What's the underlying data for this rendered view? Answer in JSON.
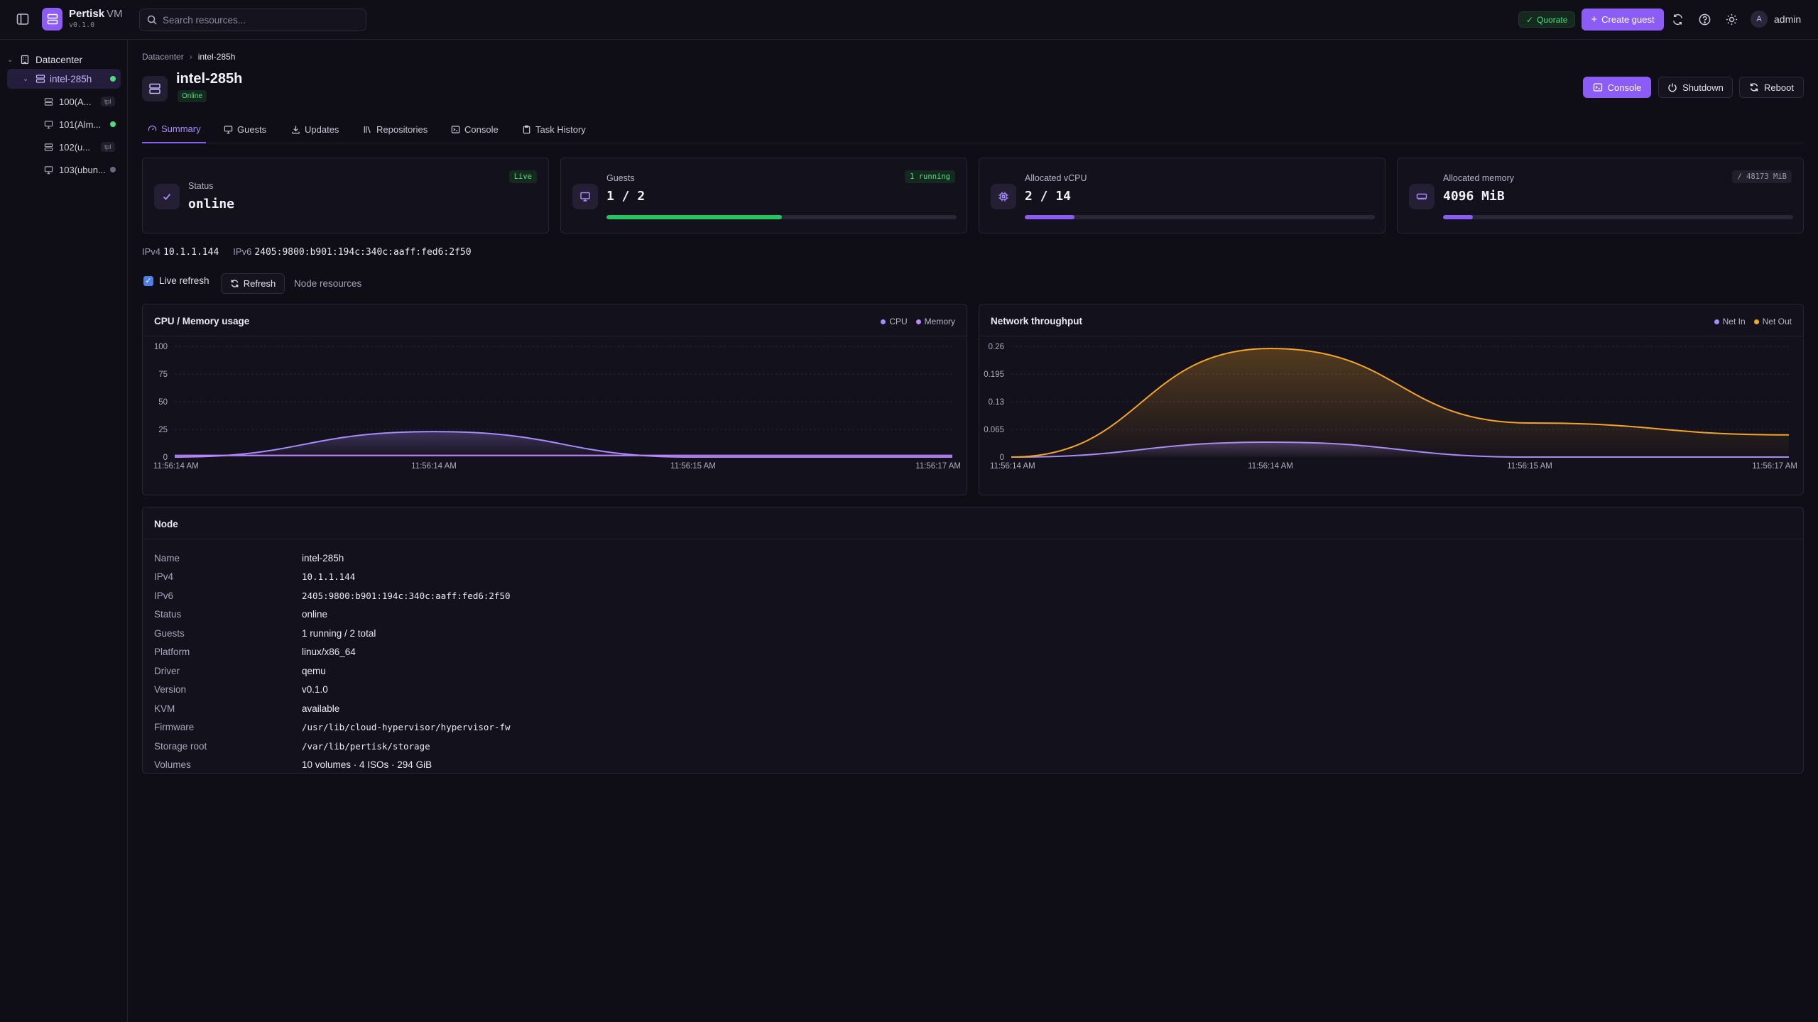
{
  "app": {
    "name": "Pertisk",
    "suffix": "VM",
    "version": "v0.1.0"
  },
  "search": {
    "placeholder": "Search resources..."
  },
  "topbar": {
    "quorate": "Quorate",
    "create_guest": "Create guest",
    "user": "admin",
    "avatar_initial": "A"
  },
  "sidebar": {
    "datacenter": "Datacenter",
    "node": "intel-285h",
    "guests": [
      {
        "label": "100(A...",
        "tag": "tpl",
        "kind": "template"
      },
      {
        "label": "101(Alm...",
        "status": "running",
        "kind": "vm"
      },
      {
        "label": "102(u...",
        "tag": "tpl",
        "kind": "template"
      },
      {
        "label": "103(ubun...",
        "status": "stopped",
        "kind": "vm"
      }
    ]
  },
  "breadcrumb": [
    "Datacenter",
    "intel-285h"
  ],
  "header": {
    "title": "intel-285h",
    "status": "Online",
    "console": "Console",
    "shutdown": "Shutdown",
    "reboot": "Reboot"
  },
  "tabs": [
    "Summary",
    "Guests",
    "Updates",
    "Repositories",
    "Console",
    "Task History"
  ],
  "stats": {
    "status": {
      "label": "Status",
      "value": "online",
      "chip": "Live"
    },
    "guests": {
      "label": "Guests",
      "value": "1 / 2",
      "chip": "1 running",
      "progress": 0.5
    },
    "vcpu": {
      "label": "Allocated vCPU",
      "value": "2 / 14",
      "progress": 0.143
    },
    "memory": {
      "label": "Allocated memory",
      "value": "4096 MiB",
      "chip": "/ 48173 MiB",
      "progress": 0.085
    }
  },
  "addresses": {
    "ipv4_label": "IPv4",
    "ipv4": "10.1.1.144",
    "ipv6_label": "IPv6",
    "ipv6": "2405:9800:b901:194c:340c:aaff:fed6:2f50"
  },
  "controls": {
    "live_refresh": "Live refresh",
    "refresh": "Refresh",
    "node_resources": "Node resources"
  },
  "colors": {
    "accent": "#8b5cf6",
    "cpu": "#a78bfa",
    "memory": "#c084fc",
    "net_in": "#a78bfa",
    "net_out": "#f5a524",
    "online": "#4ade80"
  },
  "chart_data": [
    {
      "type": "area",
      "title": "CPU / Memory usage",
      "x": [
        "11:56:14 AM",
        "11:56:14 AM",
        "11:56:15 AM",
        "11:56:17 AM"
      ],
      "yticks": [
        "100",
        "75",
        "50",
        "25",
        "0"
      ],
      "ylim": [
        0,
        100
      ],
      "series": [
        {
          "name": "CPU",
          "values": [
            0,
            23,
            0,
            0
          ]
        },
        {
          "name": "Memory",
          "values": [
            1.5,
            1.5,
            1.5,
            1.5
          ]
        }
      ],
      "legend": "top-right",
      "grid": true
    },
    {
      "type": "area",
      "title": "Network throughput",
      "x": [
        "11:56:14 AM",
        "11:56:14 AM",
        "11:56:15 AM",
        "11:56:17 AM"
      ],
      "yticks": [
        "0.26",
        "0.195",
        "0.13",
        "0.065",
        "0"
      ],
      "ylim": [
        0,
        0.26
      ],
      "series": [
        {
          "name": "Net In",
          "values": [
            0,
            0.035,
            0,
            0
          ]
        },
        {
          "name": "Net Out",
          "values": [
            0,
            0.255,
            0.08,
            0.052
          ]
        }
      ],
      "legend": "top-right",
      "grid": true
    }
  ],
  "node_info": {
    "title": "Node",
    "rows": [
      {
        "key": "Name",
        "value": "intel-285h"
      },
      {
        "key": "IPv4",
        "value": "10.1.1.144"
      },
      {
        "key": "IPv6",
        "value": "2405:9800:b901:194c:340c:aaff:fed6:2f50"
      },
      {
        "key": "Status",
        "value": "online"
      },
      {
        "key": "Guests",
        "value": "1 running / 2 total"
      },
      {
        "key": "Platform",
        "value": "linux/x86_64"
      },
      {
        "key": "Driver",
        "value": "qemu"
      },
      {
        "key": "Version",
        "value": "v0.1.0"
      },
      {
        "key": "KVM",
        "value": "available"
      },
      {
        "key": "Firmware",
        "value": "/usr/lib/cloud-hypervisor/hypervisor-fw"
      },
      {
        "key": "Storage root",
        "value": "/var/lib/pertisk/storage"
      },
      {
        "key": "Volumes",
        "value": "10 volumes · 4 ISOs · 294 GiB"
      }
    ]
  }
}
